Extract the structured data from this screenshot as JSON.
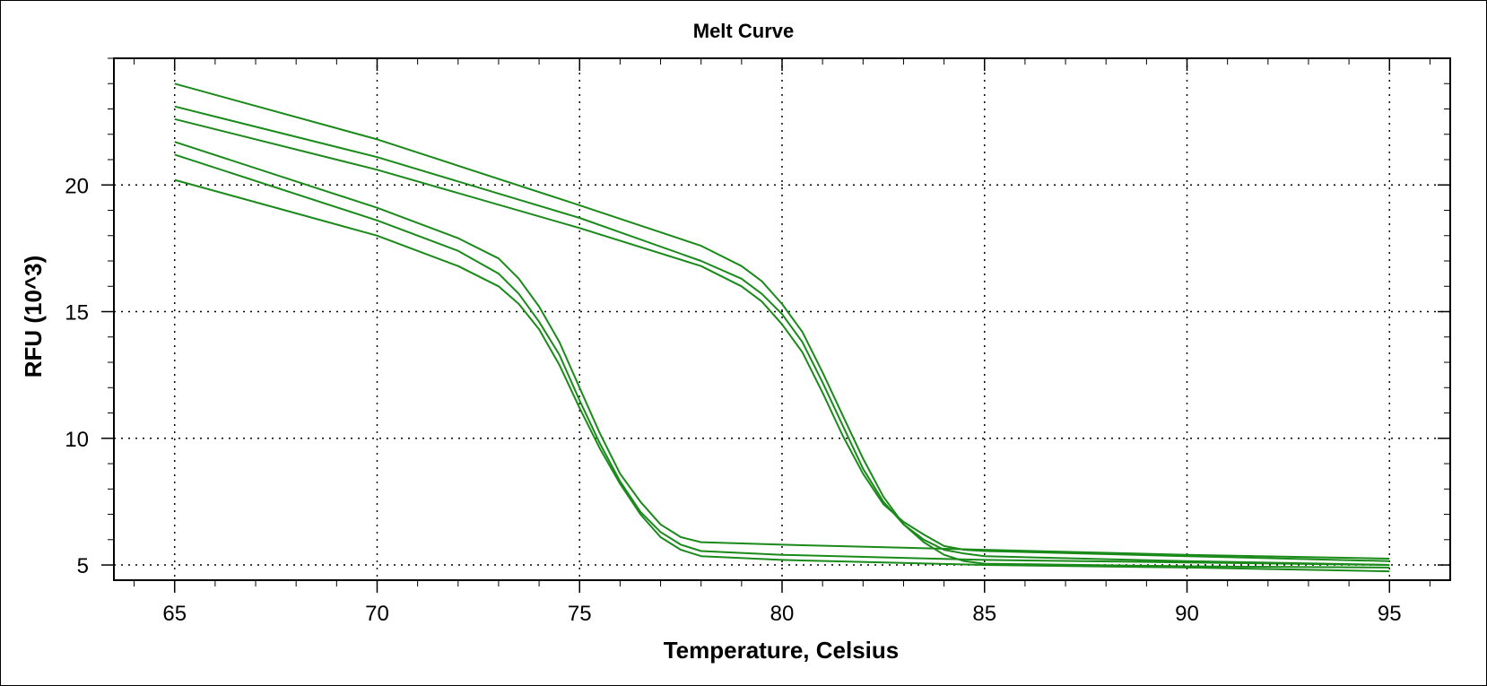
{
  "chart_data": {
    "type": "line",
    "title": "Melt Curve",
    "xlabel": "Temperature, Celsius",
    "ylabel": "RFU (10^3)",
    "xlim": [
      63.5,
      96.5
    ],
    "ylim": [
      4.4,
      25.0
    ],
    "x_ticks": [
      65,
      70,
      75,
      80,
      85,
      90,
      95
    ],
    "y_ticks": [
      5,
      10,
      15,
      20
    ],
    "grid": true,
    "legend": "none",
    "line_color": "#1a8a1a",
    "series": [
      {
        "x": [
          65,
          70,
          72,
          73,
          73.5,
          74,
          74.5,
          75,
          75.5,
          76,
          76.5,
          77,
          77.5,
          78,
          80,
          85,
          90,
          95
        ],
        "y": [
          21.7,
          19.1,
          17.9,
          17.1,
          16.3,
          15.2,
          13.8,
          12.0,
          10.2,
          8.6,
          7.5,
          6.6,
          6.1,
          5.9,
          5.8,
          5.6,
          5.4,
          5.25
        ]
      },
      {
        "x": [
          65,
          70,
          72,
          73,
          73.5,
          74,
          74.5,
          75,
          75.5,
          76,
          76.5,
          77,
          77.5,
          78,
          80,
          85,
          90,
          95
        ],
        "y": [
          21.2,
          18.6,
          17.4,
          16.5,
          15.7,
          14.6,
          13.3,
          11.5,
          9.8,
          8.3,
          7.1,
          6.3,
          5.8,
          5.55,
          5.4,
          5.2,
          5.1,
          5.0
        ]
      },
      {
        "x": [
          65,
          70,
          72,
          73,
          73.5,
          74,
          74.5,
          75,
          75.5,
          76,
          76.5,
          77,
          77.5,
          78,
          80,
          85,
          90,
          95
        ],
        "y": [
          20.2,
          18.0,
          16.8,
          16.0,
          15.3,
          14.3,
          12.9,
          11.2,
          9.6,
          8.2,
          7.0,
          6.1,
          5.6,
          5.35,
          5.2,
          5.0,
          4.9,
          4.75
        ]
      },
      {
        "x": [
          65,
          70,
          75,
          78,
          79,
          79.5,
          80,
          80.5,
          81,
          81.5,
          82,
          82.5,
          83,
          83.5,
          84,
          84.5,
          85,
          90,
          95
        ],
        "y": [
          24.0,
          21.8,
          19.2,
          17.6,
          16.8,
          16.2,
          15.3,
          14.2,
          12.6,
          10.9,
          9.2,
          7.7,
          6.6,
          5.9,
          5.4,
          5.15,
          5.05,
          4.95,
          4.9
        ]
      },
      {
        "x": [
          65,
          70,
          75,
          78,
          79,
          79.5,
          80,
          80.5,
          81,
          81.5,
          82,
          82.5,
          83,
          83.5,
          84,
          84.5,
          85,
          90,
          95
        ],
        "y": [
          23.1,
          21.1,
          18.7,
          17.0,
          16.3,
          15.7,
          14.9,
          13.8,
          12.2,
          10.5,
          8.8,
          7.5,
          6.6,
          6.0,
          5.6,
          5.45,
          5.35,
          5.15,
          5.0
        ]
      },
      {
        "x": [
          65,
          70,
          75,
          78,
          79,
          79.5,
          80,
          80.5,
          81,
          81.5,
          82,
          82.5,
          83,
          83.5,
          84,
          84.5,
          85,
          90,
          95
        ],
        "y": [
          22.6,
          20.6,
          18.3,
          16.8,
          16.0,
          15.4,
          14.5,
          13.4,
          11.8,
          10.1,
          8.6,
          7.4,
          6.7,
          6.2,
          5.75,
          5.6,
          5.55,
          5.35,
          5.15
        ]
      }
    ]
  }
}
